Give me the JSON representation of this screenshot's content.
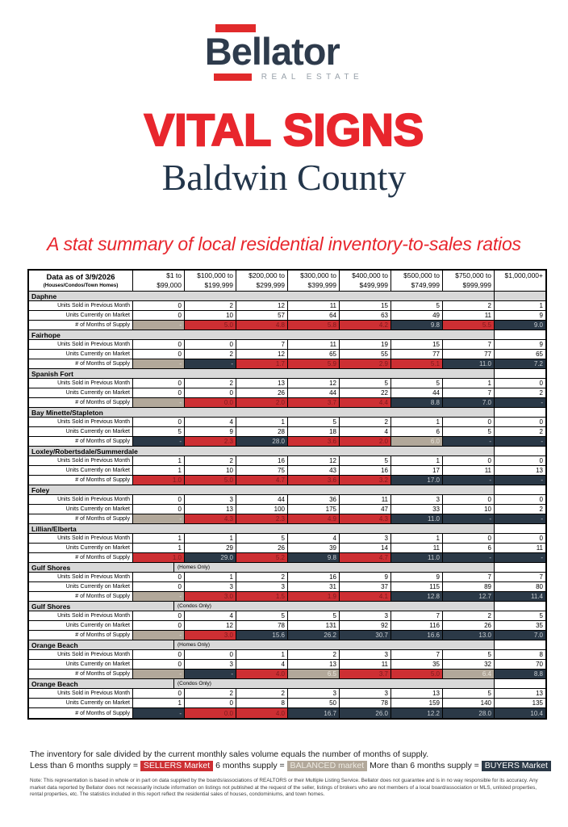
{
  "logo": {
    "name": "Bellator",
    "tagline": "REAL ESTATE"
  },
  "title": "VITAL SIGNS",
  "county": "Baldwin County",
  "subtitle": "A stat summary of local residential inventory-to-sales ratios",
  "colors": {
    "brand_red": "#E12A2B",
    "title_red": "#E8262D",
    "brand_navy": "#2E3B4C",
    "seller_fill": "#CD2F33",
    "buyer_fill": "#2B3947",
    "balanced_fill": "#B2A89A",
    "band_gray": "#D9D9D9"
  },
  "table": {
    "header": {
      "title": "Data as of 3/9/2026",
      "subtitle": "(Houses/Condos/Town Homes)",
      "columns": [
        [
          "$1 to",
          "$99,000"
        ],
        [
          "$100,000 to",
          "$199,999"
        ],
        [
          "$200,000 to",
          "$299,999"
        ],
        [
          "$300,000 to",
          "$399,999"
        ],
        [
          "$400,000 to",
          "$499,999"
        ],
        [
          "$500,000 to",
          "$749,999"
        ],
        [
          "$750,000 to",
          "$999,999"
        ],
        [
          "$1,000,000+",
          ""
        ]
      ]
    },
    "row_labels": {
      "sold": "Units Sold in Previous Month",
      "market": "Units Currently on Market",
      "supply": "# of Months of Supply"
    },
    "sections": [
      {
        "name": "Daphne",
        "sub": "",
        "band_last_gray": true,
        "sold": [
          "0",
          "2",
          "12",
          "11",
          "15",
          "5",
          "2",
          "1"
        ],
        "market": [
          "0",
          "10",
          "57",
          "64",
          "63",
          "49",
          "11",
          "9"
        ],
        "supply": [
          "-",
          "5.0",
          "4.8",
          "5.8",
          "4.2",
          "9.8",
          "5.5",
          "9.0"
        ],
        "supply_class": [
          "balanced",
          "seller",
          "seller",
          "seller",
          "seller",
          "buyer",
          "seller",
          "buyer"
        ]
      },
      {
        "name": "Fairhope",
        "sub": "",
        "band_last_gray": false,
        "sold": [
          "0",
          "0",
          "7",
          "11",
          "19",
          "15",
          "7",
          "9"
        ],
        "market": [
          "0",
          "2",
          "12",
          "65",
          "55",
          "77",
          "77",
          "65"
        ],
        "supply": [
          "-",
          "-",
          "1.7",
          "5.9",
          "2.9",
          "5.1",
          "11.0",
          "7.2"
        ],
        "supply_class": [
          "balanced",
          "buyer",
          "seller",
          "seller",
          "seller",
          "seller",
          "buyer",
          "buyer"
        ]
      },
      {
        "name": "Spanish Fort",
        "sub": "",
        "band_last_gray": false,
        "sold": [
          "0",
          "2",
          "13",
          "12",
          "5",
          "5",
          "1",
          "0"
        ],
        "market": [
          "0",
          "0",
          "26",
          "44",
          "22",
          "44",
          "7",
          "2"
        ],
        "supply": [
          "-",
          "0.0",
          "2.0",
          "3.7",
          "4.4",
          "8.8",
          "7.0",
          "-"
        ],
        "supply_class": [
          "balanced",
          "seller",
          "seller",
          "seller",
          "seller",
          "buyer",
          "buyer",
          "buyer"
        ]
      },
      {
        "name": "Bay Minette/Stapleton",
        "sub": "",
        "band_last_gray": false,
        "sold": [
          "0",
          "4",
          "1",
          "5",
          "2",
          "1",
          "0",
          "0"
        ],
        "market": [
          "5",
          "9",
          "28",
          "18",
          "4",
          "6",
          "5",
          "2"
        ],
        "supply": [
          "-",
          "2.3",
          "28.0",
          "3.6",
          "2.0",
          "6.0",
          "-",
          "-"
        ],
        "supply_class": [
          "buyer",
          "seller",
          "buyer",
          "seller",
          "seller",
          "balanced",
          "buyer",
          "buyer"
        ]
      },
      {
        "name": "Loxley/Robertsdale/Summerdale",
        "sub": "",
        "band_last_gray": false,
        "sold": [
          "1",
          "2",
          "16",
          "12",
          "5",
          "1",
          "0",
          "0"
        ],
        "market": [
          "1",
          "10",
          "75",
          "43",
          "16",
          "17",
          "11",
          "13"
        ],
        "supply": [
          "1.0",
          "5.0",
          "4.7",
          "3.6",
          "3.2",
          "17.0",
          "-",
          "-"
        ],
        "supply_class": [
          "seller",
          "seller",
          "seller",
          "seller",
          "seller",
          "buyer",
          "buyer",
          "buyer"
        ]
      },
      {
        "name": "Foley",
        "sub": "",
        "band_last_gray": false,
        "sold": [
          "0",
          "3",
          "44",
          "36",
          "11",
          "3",
          "0",
          "0"
        ],
        "market": [
          "0",
          "13",
          "100",
          "175",
          "47",
          "33",
          "10",
          "2"
        ],
        "supply": [
          "-",
          "4.3",
          "2.3",
          "4.9",
          "4.3",
          "11.0",
          "-",
          "-"
        ],
        "supply_class": [
          "balanced",
          "seller",
          "seller",
          "seller",
          "seller",
          "buyer",
          "buyer",
          "buyer"
        ]
      },
      {
        "name": "Lillian/Elberta",
        "sub": "",
        "band_last_gray": false,
        "sold": [
          "1",
          "1",
          "5",
          "4",
          "3",
          "1",
          "0",
          "0"
        ],
        "market": [
          "1",
          "29",
          "26",
          "39",
          "14",
          "11",
          "6",
          "11"
        ],
        "supply": [
          "1.0",
          "29.0",
          "5.2",
          "9.8",
          "4.7",
          "11.0",
          "-",
          "-"
        ],
        "supply_class": [
          "seller",
          "buyer",
          "seller",
          "buyer",
          "seller",
          "buyer",
          "buyer",
          "buyer"
        ]
      },
      {
        "name": "Gulf Shores",
        "sub": "(Homes Only)",
        "band_last_gray": false,
        "sold": [
          "0",
          "1",
          "2",
          "16",
          "9",
          "9",
          "7",
          "7"
        ],
        "market": [
          "0",
          "3",
          "3",
          "31",
          "37",
          "115",
          "89",
          "80"
        ],
        "supply": [
          "-",
          "3.0",
          "1.5",
          "1.9",
          "4.1",
          "12.8",
          "12.7",
          "11.4"
        ],
        "supply_class": [
          "balanced",
          "seller",
          "seller",
          "seller",
          "seller",
          "buyer",
          "buyer",
          "buyer"
        ]
      },
      {
        "name": "Gulf Shores",
        "sub": "(Condos Only)",
        "band_last_gray": false,
        "sold": [
          "0",
          "4",
          "5",
          "5",
          "3",
          "7",
          "2",
          "5"
        ],
        "market": [
          "0",
          "12",
          "78",
          "131",
          "92",
          "116",
          "26",
          "35"
        ],
        "supply": [
          "-",
          "3.0",
          "15.6",
          "26.2",
          "30.7",
          "16.6",
          "13.0",
          "7.0"
        ],
        "supply_class": [
          "balanced",
          "seller",
          "buyer",
          "buyer",
          "buyer",
          "buyer",
          "buyer",
          "buyer"
        ]
      },
      {
        "name": "Orange Beach",
        "sub": "(Homes Only)",
        "band_last_gray": false,
        "sold": [
          "0",
          "0",
          "1",
          "2",
          "3",
          "7",
          "5",
          "8"
        ],
        "market": [
          "0",
          "3",
          "4",
          "13",
          "11",
          "35",
          "32",
          "70"
        ],
        "supply": [
          "-",
          "-",
          "4.0",
          "6.5",
          "3.7",
          "5.0",
          "6.4",
          "8.8"
        ],
        "supply_class": [
          "balanced",
          "buyer",
          "seller",
          "balanced",
          "seller",
          "seller",
          "balanced",
          "buyer"
        ]
      },
      {
        "name": "Orange Beach",
        "sub": "(Condos Only)",
        "band_last_gray": false,
        "sold": [
          "0",
          "2",
          "2",
          "3",
          "3",
          "13",
          "5",
          "13"
        ],
        "market": [
          "1",
          "0",
          "8",
          "50",
          "78",
          "159",
          "140",
          "135"
        ],
        "supply": [
          "-",
          "0.0",
          "4.0",
          "16.7",
          "26.0",
          "12.2",
          "28.0",
          "10.4"
        ],
        "supply_class": [
          "buyer",
          "seller",
          "seller",
          "buyer",
          "buyer",
          "buyer",
          "buyer",
          "buyer"
        ]
      }
    ]
  },
  "legend": {
    "line1": "The inventory for sale divided by the current monthly sales volume equals the number of months of supply.",
    "less_label": "Less than 6 months supply =",
    "sellers": "SELLERS Market",
    "six_label": "6 months supply =",
    "balanced": "BALANCED market",
    "more_label": "More than 6 months supply =",
    "buyers": "BUYERS Market"
  },
  "note": "Note: This representation is based in whole or in part on data supplied by the boards/associations of REALTORS or their Multiple Listing Service. Bellator does not guarantee and is in no way responsible for its accuracy. Any market data reported by Bellator does not necessarily include information on listings not published at the request of the seller, listings of brokers who are not members of a local board/association or MLS, unlisted properties, rental properties, etc. The statistics included in this report reflect the residential sales of houses, condominiums, and town homes."
}
